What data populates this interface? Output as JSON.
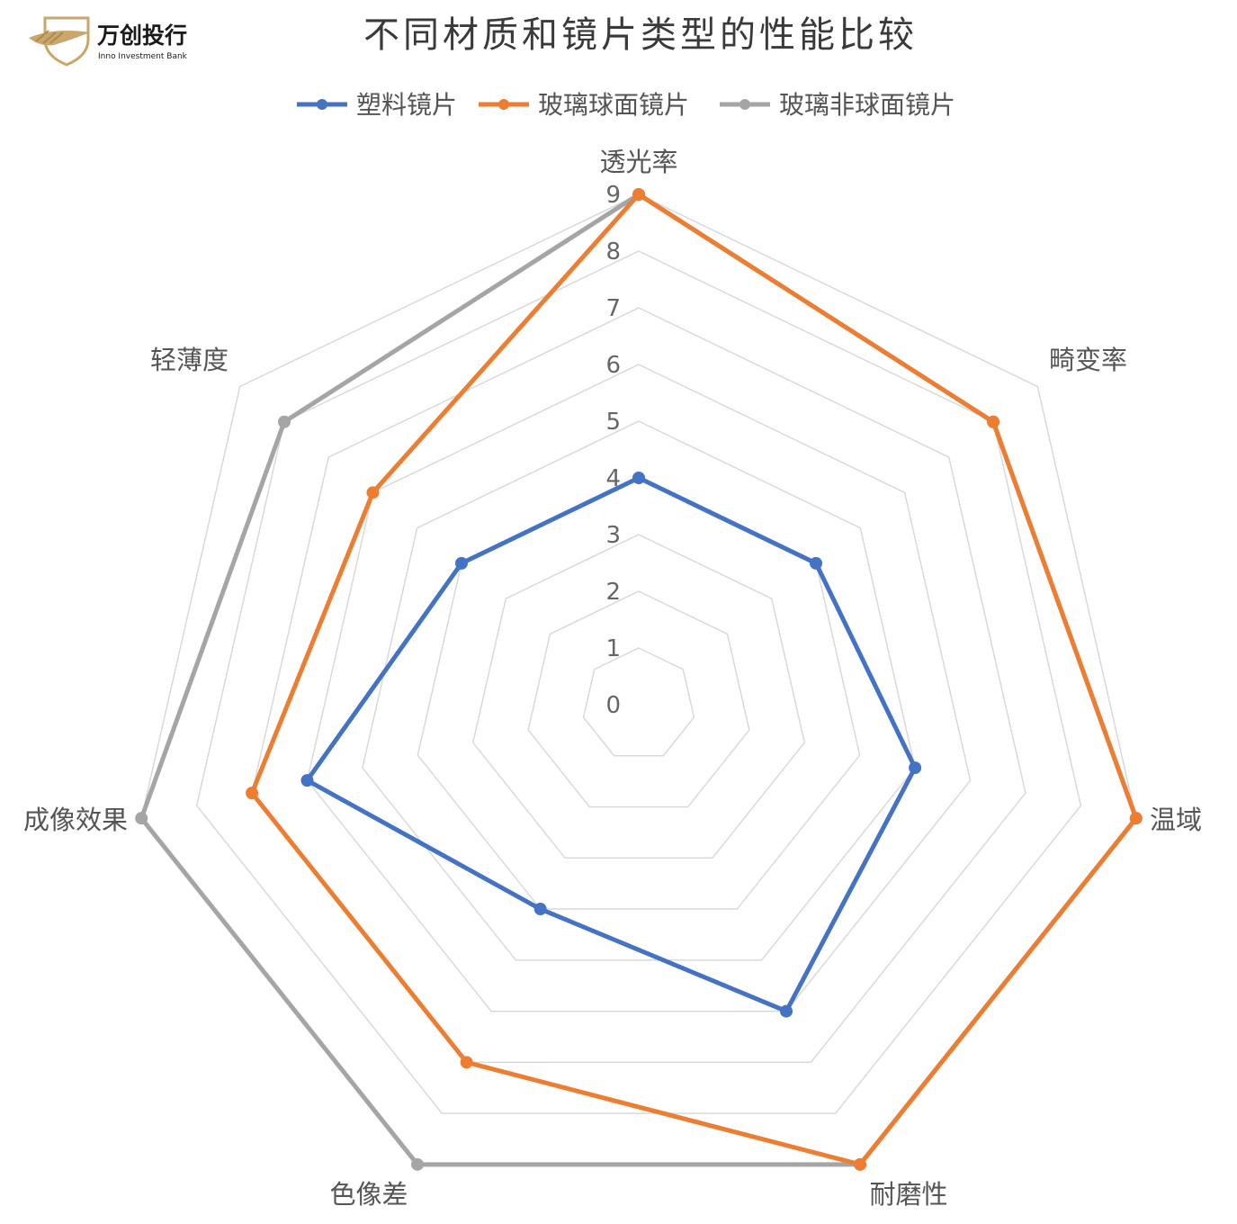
{
  "logo": {
    "name_cn": "万创投行",
    "name_en": "Inno Investment Bank",
    "colors": {
      "shield": "#c9a66b",
      "text": "#1a1a1a"
    }
  },
  "chart_data": {
    "type": "radar",
    "title": "不同材质和镜片类型的性能比较",
    "axes": [
      "透光率",
      "畸变率",
      "温域",
      "耐磨性",
      "色像差",
      "成像效果",
      "轻薄度"
    ],
    "rlim": [
      0,
      9
    ],
    "ticks": [
      "0",
      "1",
      "2",
      "3",
      "4",
      "5",
      "6",
      "7",
      "8",
      "9"
    ],
    "grid": true,
    "legend_position": "top",
    "series": [
      {
        "name": "塑料镜片",
        "color": "#4472c4",
        "values": [
          4,
          4,
          5,
          6,
          4,
          6,
          4
        ]
      },
      {
        "name": "玻璃球面镜片",
        "color": "#ed7d31",
        "values": [
          9,
          8,
          9,
          9,
          7,
          7,
          6
        ]
      },
      {
        "name": "玻璃非球面镜片",
        "color": "#a5a5a5",
        "values": [
          9,
          8,
          9,
          9,
          9,
          9,
          8
        ]
      }
    ]
  }
}
